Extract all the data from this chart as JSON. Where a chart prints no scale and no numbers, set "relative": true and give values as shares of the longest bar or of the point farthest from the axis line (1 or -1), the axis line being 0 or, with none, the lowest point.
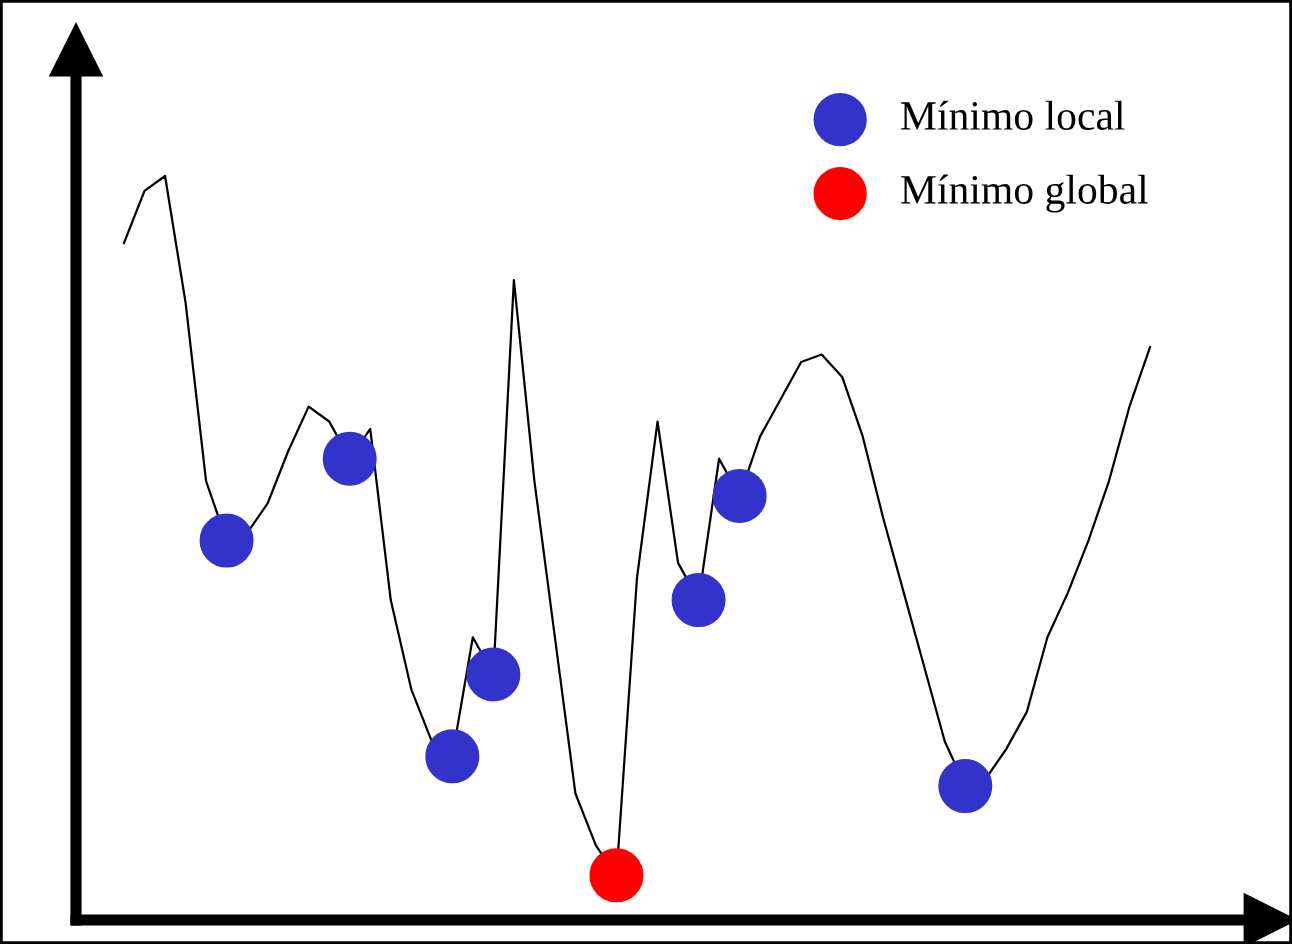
{
  "chart_data": {
    "type": "line",
    "relative": true,
    "categories": [
      null,
      null,
      null,
      null,
      null,
      null,
      null,
      null,
      null,
      null,
      null,
      null,
      null,
      null,
      null,
      null,
      null,
      null,
      null,
      null,
      null,
      null,
      null,
      null,
      null,
      null,
      null,
      null,
      null,
      null,
      null,
      null,
      null,
      null,
      null,
      null,
      null,
      null,
      null,
      null,
      null,
      null,
      null,
      null,
      null,
      null,
      null,
      null,
      null,
      null,
      null
    ],
    "series": [
      {
        "color": "#000000",
        "values": [
          0.91,
          0.98,
          1.0,
          0.83,
          0.59,
          0.51,
          0.52,
          0.56,
          0.63,
          0.69,
          0.67,
          0.62,
          0.66,
          0.43,
          0.31,
          0.24,
          0.22,
          0.38,
          0.33,
          0.86,
          0.59,
          0.38,
          0.17,
          0.1,
          0.06,
          0.46,
          0.67,
          0.48,
          0.43,
          0.62,
          0.57,
          0.65,
          0.7,
          0.75,
          0.76,
          0.73,
          0.65,
          0.54,
          0.44,
          0.34,
          0.24,
          0.18,
          0.19,
          0.23,
          0.28,
          0.38,
          0.44,
          0.51,
          0.59,
          0.69,
          0.77
        ]
      }
    ],
    "annotations": [
      "Mínimo local",
      "Mínimo global"
    ]
  }
}
